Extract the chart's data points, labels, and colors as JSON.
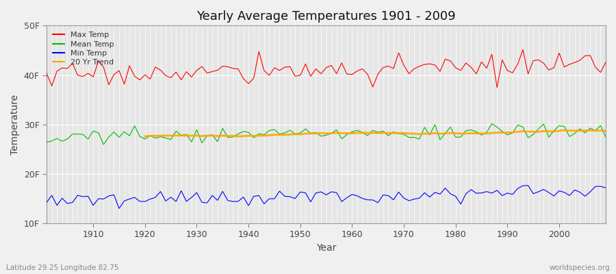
{
  "title": "Yearly Average Temperatures 1901 - 2009",
  "xlabel": "Year",
  "ylabel": "Temperature",
  "year_start": 1901,
  "year_end": 2009,
  "ylim": [
    10,
    50
  ],
  "yticks": [
    10,
    20,
    30,
    40,
    50
  ],
  "ytick_labels": [
    "10F",
    "20F",
    "30F",
    "40F",
    "50F"
  ],
  "xticks": [
    1910,
    1920,
    1930,
    1940,
    1950,
    1960,
    1970,
    1980,
    1990,
    2000
  ],
  "bg_color": "#f0f0f0",
  "plot_bg_color": "#e6e6e6",
  "vgrid_color": "#ffffff",
  "hgrid_color": "#cccccc",
  "max_temp_color": "#ff0000",
  "mean_temp_color": "#00bb00",
  "min_temp_color": "#0000ff",
  "trend_color": "#ffa500",
  "legend_labels": [
    "Max Temp",
    "Mean Temp",
    "Min Temp",
    "20 Yr Trend"
  ],
  "bottom_left_text": "Latitude 29.25 Longitude 82.75",
  "bottom_right_text": "worldspecies.org",
  "seed": 17,
  "max_temp_base": 40.0,
  "max_temp_trend": 0.018,
  "max_temp_noise": 1.2,
  "mean_temp_base": 27.5,
  "mean_temp_trend": 0.012,
  "mean_temp_noise": 0.8,
  "min_temp_base": 14.5,
  "min_temp_trend": 0.02,
  "min_temp_noise": 0.8
}
